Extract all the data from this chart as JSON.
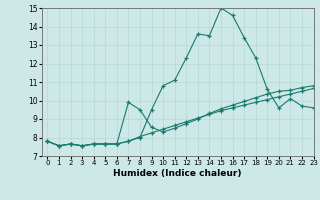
{
  "xlabel": "Humidex (Indice chaleur)",
  "ylabel": "",
  "xlim": [
    -0.5,
    23
  ],
  "ylim": [
    7,
    15
  ],
  "xticks": [
    0,
    1,
    2,
    3,
    4,
    5,
    6,
    7,
    8,
    9,
    10,
    11,
    12,
    13,
    14,
    15,
    16,
    17,
    18,
    19,
    20,
    21,
    22,
    23
  ],
  "yticks": [
    7,
    8,
    9,
    10,
    11,
    12,
    13,
    14,
    15
  ],
  "bg_color": "#cce9e7",
  "line_color": "#1a7a6e",
  "grid_color": "#b8d8d4",
  "line1_x": [
    0,
    1,
    2,
    3,
    4,
    5,
    6,
    7,
    8,
    9,
    10,
    11,
    12,
    13,
    14,
    15,
    16,
    17,
    18,
    19,
    20,
    21,
    22,
    23
  ],
  "line1_y": [
    7.8,
    7.55,
    7.65,
    7.55,
    7.65,
    7.65,
    7.65,
    7.8,
    8.0,
    9.5,
    10.8,
    11.1,
    12.3,
    13.6,
    13.5,
    15.0,
    14.6,
    13.4,
    12.3,
    10.6,
    9.6,
    10.1,
    9.7,
    9.6
  ],
  "line2_x": [
    0,
    1,
    2,
    3,
    4,
    5,
    6,
    7,
    8,
    9,
    10,
    11,
    12,
    13,
    14,
    15,
    16,
    17,
    18,
    19,
    20,
    21,
    22,
    23
  ],
  "line2_y": [
    7.8,
    7.55,
    7.65,
    7.55,
    7.65,
    7.65,
    7.65,
    9.9,
    9.5,
    8.55,
    8.3,
    8.5,
    8.75,
    9.0,
    9.3,
    9.55,
    9.75,
    9.95,
    10.15,
    10.35,
    10.5,
    10.55,
    10.7,
    10.8
  ],
  "line3_x": [
    0,
    1,
    2,
    3,
    4,
    5,
    6,
    7,
    8,
    9,
    10,
    11,
    12,
    13,
    14,
    15,
    16,
    17,
    18,
    19,
    20,
    21,
    22,
    23
  ],
  "line3_y": [
    7.8,
    7.55,
    7.65,
    7.55,
    7.65,
    7.65,
    7.65,
    7.8,
    8.05,
    8.25,
    8.45,
    8.65,
    8.85,
    9.05,
    9.25,
    9.45,
    9.6,
    9.75,
    9.9,
    10.05,
    10.2,
    10.35,
    10.5,
    10.65
  ]
}
